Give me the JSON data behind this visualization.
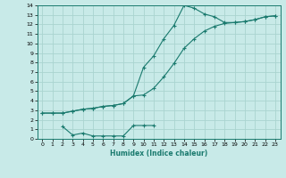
{
  "bg_color": "#c8eae8",
  "grid_color": "#aad4d0",
  "line_color": "#1a7a6e",
  "marker": "+",
  "xlabel": "Humidex (Indice chaleur)",
  "xlim": [
    -0.5,
    23.5
  ],
  "ylim": [
    0,
    14
  ],
  "xticks": [
    0,
    1,
    2,
    3,
    4,
    5,
    6,
    7,
    8,
    9,
    10,
    11,
    12,
    13,
    14,
    15,
    16,
    17,
    18,
    19,
    20,
    21,
    22,
    23
  ],
  "yticks": [
    0,
    1,
    2,
    3,
    4,
    5,
    6,
    7,
    8,
    9,
    10,
    11,
    12,
    13,
    14
  ],
  "curve1_x": [
    0,
    1,
    2,
    3,
    4,
    5,
    6,
    7,
    8,
    9,
    10,
    11,
    12,
    13,
    14,
    15,
    16,
    17,
    18,
    19,
    20,
    21,
    22,
    23
  ],
  "curve1_y": [
    2.7,
    2.7,
    2.7,
    2.9,
    3.1,
    3.2,
    3.4,
    3.5,
    3.7,
    4.5,
    7.5,
    8.7,
    10.5,
    11.9,
    14.0,
    13.7,
    13.1,
    12.8,
    12.2,
    12.2,
    12.3,
    12.5,
    12.8,
    12.9
  ],
  "curve2_x": [
    0,
    1,
    2,
    3,
    4,
    5,
    6,
    7,
    8,
    9,
    10,
    11,
    12,
    13,
    14,
    15,
    16,
    17,
    18,
    19,
    20,
    21,
    22,
    23
  ],
  "curve2_y": [
    2.7,
    2.7,
    2.7,
    2.9,
    3.1,
    3.2,
    3.4,
    3.5,
    3.7,
    4.5,
    4.6,
    5.3,
    6.5,
    7.9,
    9.5,
    10.5,
    11.3,
    11.8,
    12.1,
    12.2,
    12.3,
    12.5,
    12.8,
    12.9
  ],
  "curve3_x": [
    2,
    3,
    4,
    5,
    6,
    7,
    8,
    9,
    10,
    11
  ],
  "curve3_y": [
    1.3,
    0.4,
    0.6,
    0.3,
    0.3,
    0.3,
    0.3,
    1.4,
    1.4,
    1.4
  ]
}
